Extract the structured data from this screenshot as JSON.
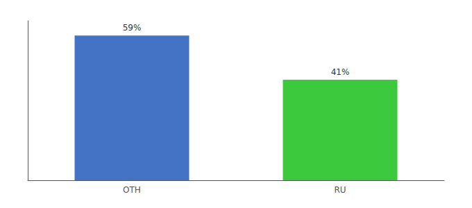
{
  "chart_data": {
    "type": "bar",
    "categories": [
      "OTH",
      "RU"
    ],
    "values": [
      59,
      41
    ],
    "value_labels": [
      "59%",
      "41%"
    ],
    "colors": [
      "#4472C4",
      "#3DC93D"
    ],
    "ylim": [
      0,
      65
    ],
    "yticks": [],
    "grid": false,
    "data_labels": true,
    "tick_labels": "x"
  }
}
